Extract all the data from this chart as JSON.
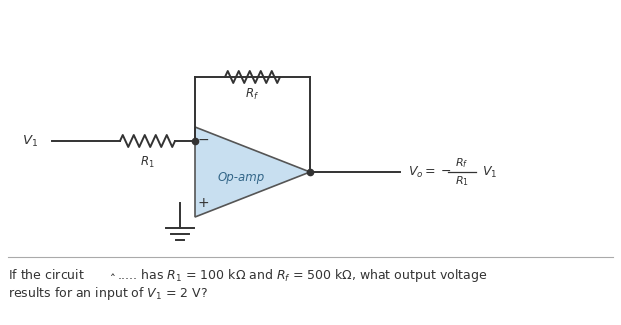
{
  "bg_color": "#ffffff",
  "op_amp_fill": "#c8dff0",
  "op_amp_edge": "#555555",
  "line_color": "#333333",
  "text_color": "#333333",
  "fig_width": 6.21,
  "fig_height": 3.25,
  "dpi": 100,
  "question_line1": "If the circuit         ˈ ..... has $R_1$ = 100 kΩ and $R_f$ = 500 kΩ, what output voltage",
  "question_line2": "results for an input of $V_1$ = 2 V?"
}
